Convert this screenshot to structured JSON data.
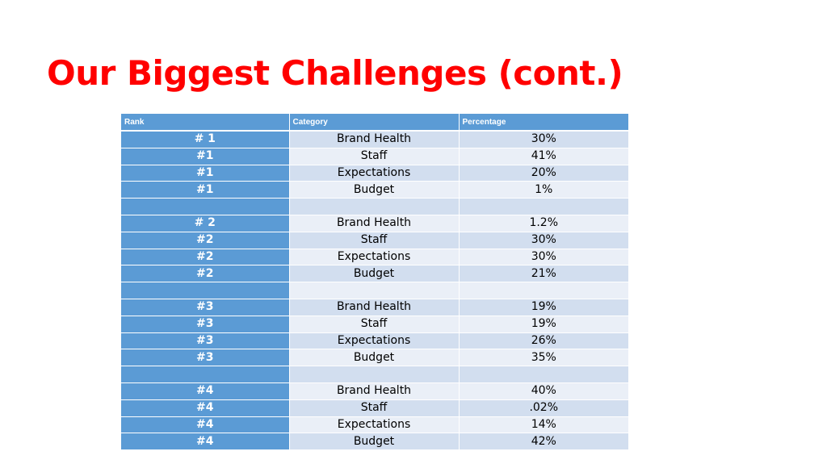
{
  "slide": {
    "title": "Our Biggest Challenges (cont.)"
  },
  "table": {
    "headers": [
      "Rank",
      "Category",
      "Percentage"
    ],
    "rows": [
      {
        "rank": "# 1",
        "category": "Brand Health",
        "percentage": "30%"
      },
      {
        "rank": "#1",
        "category": "Staff",
        "percentage": "41%"
      },
      {
        "rank": "#1",
        "category": "Expectations",
        "percentage": "20%"
      },
      {
        "rank": "#1",
        "category": "Budget",
        "percentage": "1%"
      },
      {
        "rank": "",
        "category": "",
        "percentage": ""
      },
      {
        "rank": "# 2",
        "category": "Brand Health",
        "percentage": "1.2%"
      },
      {
        "rank": "#2",
        "category": "Staff",
        "percentage": "30%"
      },
      {
        "rank": "#2",
        "category": "Expectations",
        "percentage": "30%"
      },
      {
        "rank": "#2",
        "category": "Budget",
        "percentage": "21%"
      },
      {
        "rank": "",
        "category": "",
        "percentage": ""
      },
      {
        "rank": "#3",
        "category": "Brand Health",
        "percentage": "19%"
      },
      {
        "rank": "#3",
        "category": "Staff",
        "percentage": "19%"
      },
      {
        "rank": "#3",
        "category": "Expectations",
        "percentage": "26%"
      },
      {
        "rank": "#3",
        "category": "Budget",
        "percentage": "35%"
      },
      {
        "rank": "",
        "category": "",
        "percentage": ""
      },
      {
        "rank": "#4",
        "category": "Brand Health",
        "percentage": "40%"
      },
      {
        "rank": "#4",
        "category": "Staff",
        "percentage": ".02%"
      },
      {
        "rank": "#4",
        "category": "Expectations",
        "percentage": "14%"
      },
      {
        "rank": "#4",
        "category": "Budget",
        "percentage": "42%"
      }
    ]
  },
  "colors": {
    "title": "#ff0000",
    "header_and_rank_fill": "#5b9bd5",
    "row_band_dark": "#d2deef",
    "row_band_light": "#eaeff7"
  }
}
